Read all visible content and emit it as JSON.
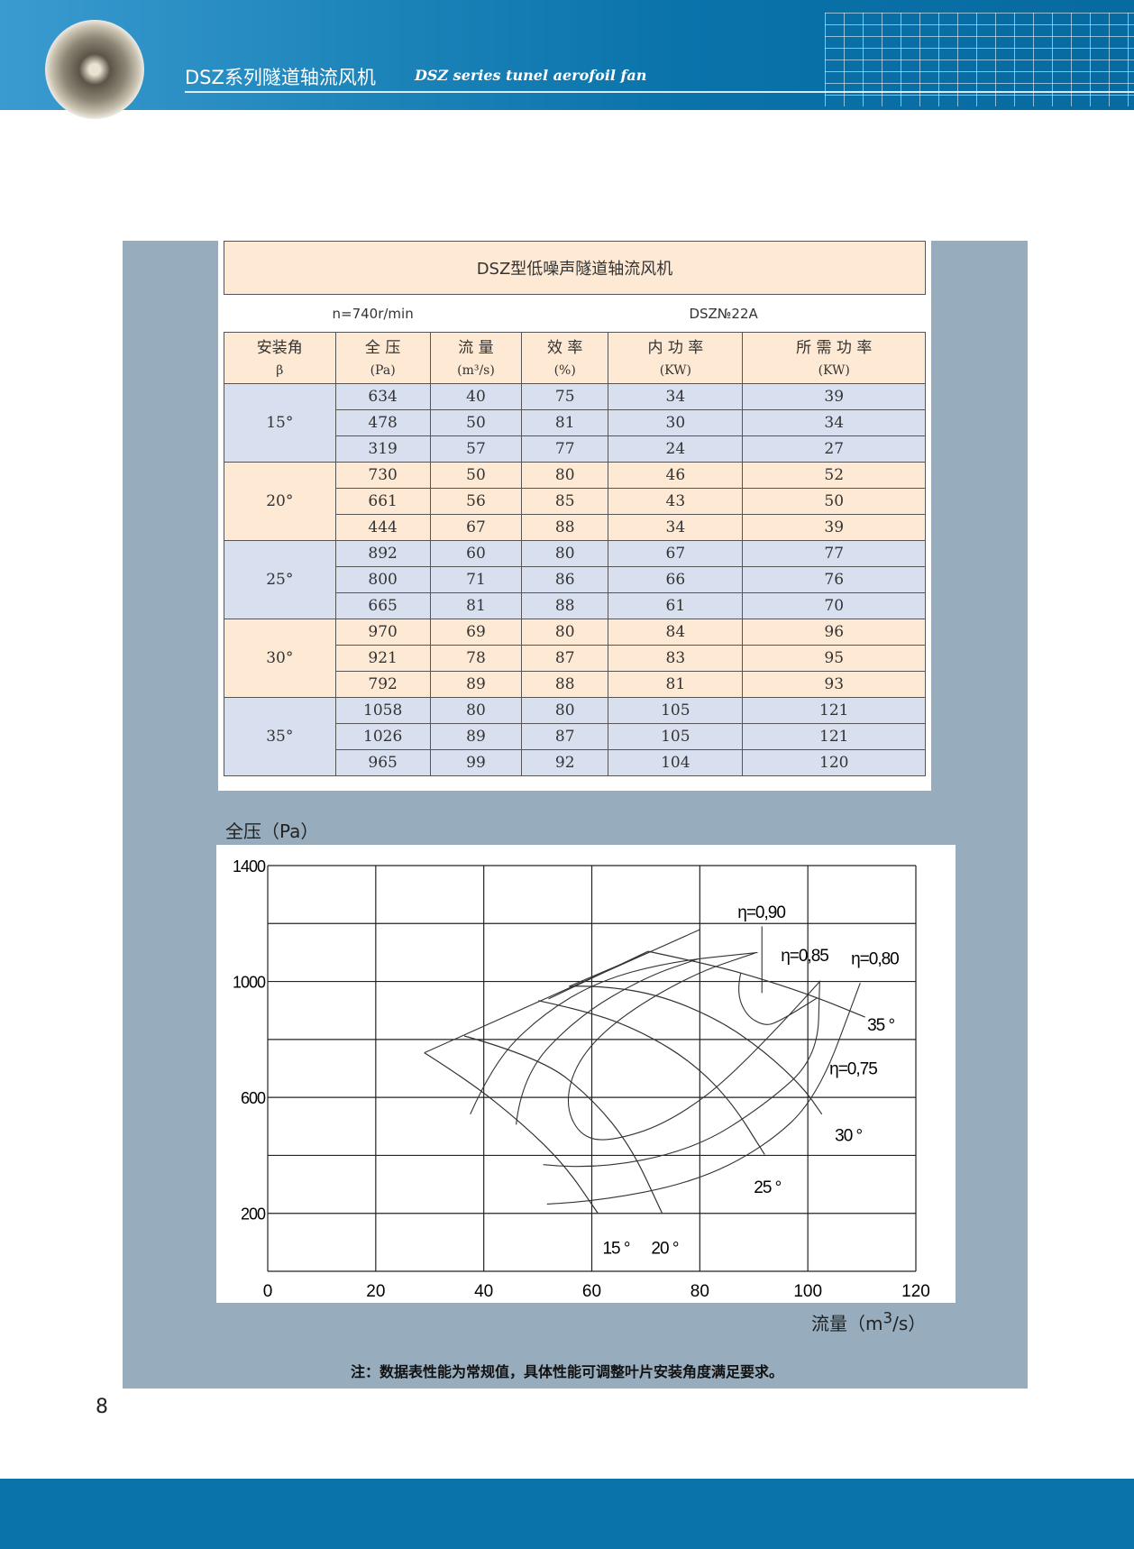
{
  "header": {
    "title_cn": "DSZ系列隧道轴流风机",
    "title_en": "DSZ series tunel aerofoil fan"
  },
  "table": {
    "title": "DSZ型低噪声隧道轴流风机",
    "speed": "n=740r/min",
    "model": "DSZ№22A",
    "columns": [
      {
        "name": "安装角",
        "unit": "β"
      },
      {
        "name": "全 压",
        "unit": "(Pa)"
      },
      {
        "name": "流 量",
        "unit": "(m³/s)"
      },
      {
        "name": "效 率",
        "unit": "(%)"
      },
      {
        "name": "内 功 率",
        "unit": "(KW)"
      },
      {
        "name": "所 需 功 率",
        "unit": "(KW)"
      }
    ],
    "groups": [
      {
        "angle": "15°",
        "rows": [
          [
            "634",
            "40",
            "75",
            "34",
            "39"
          ],
          [
            "478",
            "50",
            "81",
            "30",
            "34"
          ],
          [
            "319",
            "57",
            "77",
            "24",
            "27"
          ]
        ]
      },
      {
        "angle": "20°",
        "rows": [
          [
            "730",
            "50",
            "80",
            "46",
            "52"
          ],
          [
            "661",
            "56",
            "85",
            "43",
            "50"
          ],
          [
            "444",
            "67",
            "88",
            "34",
            "39"
          ]
        ]
      },
      {
        "angle": "25°",
        "rows": [
          [
            "892",
            "60",
            "80",
            "67",
            "77"
          ],
          [
            "800",
            "71",
            "86",
            "66",
            "76"
          ],
          [
            "665",
            "81",
            "88",
            "61",
            "70"
          ]
        ]
      },
      {
        "angle": "30°",
        "rows": [
          [
            "970",
            "69",
            "80",
            "84",
            "96"
          ],
          [
            "921",
            "78",
            "87",
            "83",
            "95"
          ],
          [
            "792",
            "89",
            "88",
            "81",
            "93"
          ]
        ]
      },
      {
        "angle": "35°",
        "rows": [
          [
            "1058",
            "80",
            "80",
            "105",
            "121"
          ],
          [
            "1026",
            "89",
            "87",
            "105",
            "121"
          ],
          [
            "965",
            "99",
            "92",
            "104",
            "120"
          ]
        ]
      }
    ]
  },
  "chart_data": {
    "type": "line",
    "ylabel": "全压（Pa）",
    "xlabel": "流量（m³/s）",
    "xlim": [
      0,
      120
    ],
    "ylim": [
      0,
      1400
    ],
    "xticks": [
      "0",
      "20",
      "40",
      "60",
      "80",
      "100",
      "120"
    ],
    "yticks": [
      {
        "v": 1400,
        "label": "1400"
      },
      {
        "v": 1000,
        "label": "1000"
      },
      {
        "v": 600,
        "label": "600"
      },
      {
        "v": 200,
        "label": "200"
      }
    ],
    "grid": true,
    "angle_curves": [
      {
        "label": "15 °",
        "points": [
          [
            29,
            754
          ],
          [
            37.3,
            656
          ],
          [
            47,
            512
          ],
          [
            55,
            367
          ],
          [
            61.1,
            201
          ]
        ]
      },
      {
        "label": "20 °",
        "points": [
          [
            36.4,
            812
          ],
          [
            50.5,
            738
          ],
          [
            60.2,
            594
          ],
          [
            67.3,
            429
          ],
          [
            73,
            201
          ]
        ]
      },
      {
        "label": "25 °",
        "points": [
          [
            50.1,
            934
          ],
          [
            60.2,
            893
          ],
          [
            70,
            820
          ],
          [
            78.8,
            718
          ],
          [
            85.9,
            584
          ],
          [
            92,
            403
          ]
        ]
      },
      {
        "label": "30 °",
        "points": [
          [
            55.8,
            983
          ],
          [
            60.2,
            987
          ],
          [
            71.7,
            959
          ],
          [
            83.2,
            872
          ],
          [
            92,
            759
          ],
          [
            99.1,
            635
          ],
          [
            102.6,
            542
          ]
        ]
      },
      {
        "label": "35 °",
        "points": [
          [
            70.4,
            1104
          ],
          [
            82.3,
            1057
          ],
          [
            92,
            1006
          ],
          [
            101.8,
            944
          ],
          [
            110.6,
            877
          ]
        ]
      }
    ],
    "boundary": [
      [
        [
          29,
          754
        ],
        [
          80,
          1179
        ]
      ],
      [
        [
          52,
          940
        ],
        [
          70.4,
          1104
        ]
      ],
      [
        [
          55.8,
          983
        ],
        [
          71,
          1104
        ]
      ]
    ],
    "efficiency_curves": [
      {
        "label": "η=0.75",
        "points": [
          [
            37.5,
            542
          ],
          [
            41.7,
            718
          ],
          [
            50.5,
            882
          ],
          [
            61.1,
            1001
          ],
          [
            74.4,
            1068
          ],
          [
            90.7,
            1100
          ]
        ]
      },
      {
        "label": "η=0.75",
        "points": [
          [
            51.7,
            232
          ],
          [
            60.2,
            239
          ],
          [
            78.8,
            306
          ],
          [
            92,
            429
          ],
          [
            101.8,
            599
          ],
          [
            109.7,
            995
          ]
        ]
      },
      {
        "label": "η=0.80",
        "points": [
          [
            46,
            506
          ],
          [
            47,
            676
          ],
          [
            57.6,
            882
          ],
          [
            70,
            1016
          ],
          [
            79.7,
            1078
          ]
        ]
      },
      {
        "label": "η=0.80",
        "points": [
          [
            51,
            368
          ],
          [
            60.2,
            350
          ],
          [
            78.8,
            419
          ],
          [
            92,
            573
          ],
          [
            101.8,
            738
          ],
          [
            102.2,
            1003
          ]
        ]
      },
      {
        "label": "η=0.85",
        "points": [
          [
            102.2,
            1000
          ],
          [
            87.6,
            697
          ],
          [
            74.4,
            512
          ],
          [
            62.9,
            445
          ],
          [
            57.6,
            470
          ],
          [
            55,
            584
          ],
          [
            57.6,
            738
          ],
          [
            65.5,
            882
          ],
          [
            78.8,
            1026
          ],
          [
            90.2,
            1098
          ]
        ]
      },
      {
        "label": "η=0.90",
        "points": [
          [
            87.6,
            1031
          ],
          [
            86.8,
            965
          ],
          [
            88.6,
            882
          ],
          [
            92,
            846
          ],
          [
            94.7,
            862
          ],
          [
            101.8,
            944
          ]
        ]
      }
    ],
    "annotations": [
      {
        "text": "η=0,90",
        "x": 87,
        "y": 1220
      },
      {
        "text": "η=0,85",
        "x": 95,
        "y": 1070
      },
      {
        "text": "η=0,80",
        "x": 108,
        "y": 1060
      },
      {
        "text": "η=0,75",
        "x": 104,
        "y": 680
      },
      {
        "text": "35 °",
        "x": 111,
        "y": 830
      },
      {
        "text": "30 °",
        "x": 105,
        "y": 450
      },
      {
        "text": "25 °",
        "x": 90,
        "y": 270
      },
      {
        "text": "15 °",
        "x": 62,
        "y": 60
      },
      {
        "text": "20 °",
        "x": 71,
        "y": 60
      }
    ]
  },
  "note": "注：数据表性能为常规值，具体性能可调整叶片安装角度满足要求。",
  "page_number": "8",
  "colors": {
    "header_blue": "#0a73aa",
    "panel": "#97adbd",
    "peach": "#fde9d4",
    "light_blue": "#d8e0f0"
  }
}
